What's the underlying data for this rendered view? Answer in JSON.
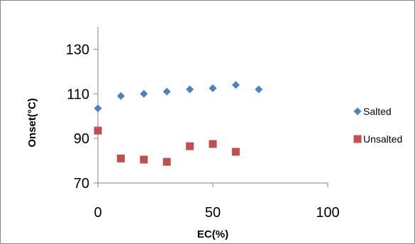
{
  "chart_data": {
    "type": "scatter",
    "title": "",
    "xlabel": "EC(%)",
    "ylabel": "Onset(°C)",
    "xlim": [
      0,
      100
    ],
    "ylim": [
      70,
      140
    ],
    "xticks": [
      0,
      50,
      100
    ],
    "yticks": [
      70,
      90,
      110,
      130
    ],
    "grid": false,
    "legend_position": "right",
    "series": [
      {
        "name": "Salted",
        "marker": "diamond",
        "color": "#4F81BD",
        "x": [
          0,
          10,
          20,
          30,
          40,
          50,
          60,
          70
        ],
        "y": [
          103.5,
          109,
          110,
          111,
          112,
          112.5,
          114,
          112
        ]
      },
      {
        "name": "Unsalted",
        "marker": "square",
        "color": "#C0504D",
        "x": [
          0,
          10,
          20,
          30,
          40,
          50,
          60
        ],
        "y": [
          93.5,
          81,
          80.5,
          79.5,
          86.5,
          87.5,
          84
        ]
      }
    ]
  }
}
